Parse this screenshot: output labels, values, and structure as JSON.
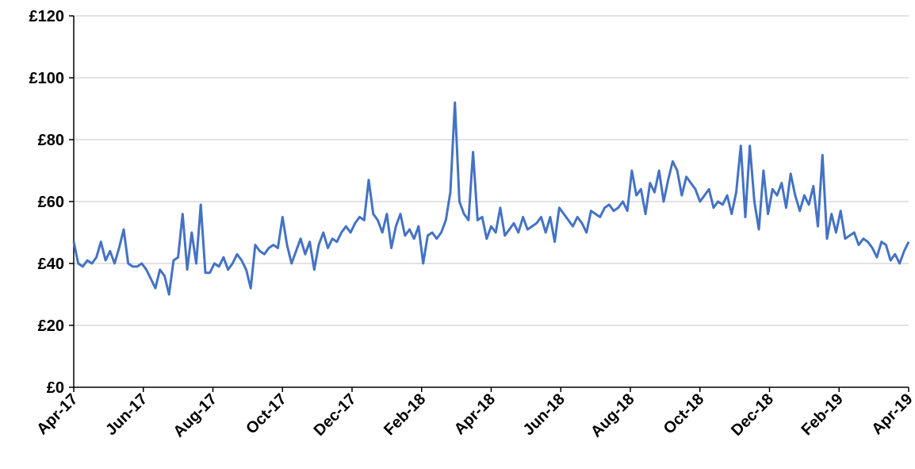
{
  "chart_data": {
    "type": "line",
    "color": "#4472c4",
    "grid": true,
    "xticks": [
      "Apr-17",
      "Jun-17",
      "Aug-17",
      "Oct-17",
      "Dec-17",
      "Feb-18",
      "Apr-18",
      "Jun-18",
      "Aug-18",
      "Oct-18",
      "Dec-18",
      "Feb-19",
      "Apr-19"
    ],
    "ylim": [
      0,
      120
    ],
    "yticks": [
      {
        "value": 0,
        "label": "£0"
      },
      {
        "value": 20,
        "label": "£20"
      },
      {
        "value": 40,
        "label": "£40"
      },
      {
        "value": 60,
        "label": "£60"
      },
      {
        "value": 80,
        "label": "£80"
      },
      {
        "value": 100,
        "label": "£100"
      },
      {
        "value": 120,
        "label": "£120"
      }
    ],
    "values": [
      47,
      40,
      39,
      41,
      40,
      42,
      47,
      41,
      44,
      40,
      45,
      51,
      40,
      39,
      39,
      40,
      38,
      35,
      32,
      38,
      36,
      30,
      41,
      42,
      56,
      38,
      50,
      40,
      59,
      37,
      37,
      40,
      39,
      42,
      38,
      40,
      43,
      41,
      38,
      32,
      46,
      44,
      43,
      45,
      46,
      45,
      55,
      46,
      40,
      44,
      48,
      43,
      47,
      38,
      46,
      50,
      45,
      48,
      47,
      50,
      52,
      50,
      53,
      55,
      54,
      67,
      56,
      54,
      50,
      56,
      45,
      52,
      56,
      49,
      51,
      48,
      52,
      40,
      49,
      50,
      48,
      50,
      54,
      63,
      92,
      60,
      56,
      54,
      76,
      54,
      55,
      48,
      52,
      50,
      58,
      49,
      51,
      53,
      50,
      55,
      51,
      52,
      53,
      55,
      50,
      55,
      47,
      58,
      56,
      54,
      52,
      55,
      53,
      50,
      57,
      56,
      55,
      58,
      59,
      57,
      58,
      60,
      57,
      70,
      62,
      64,
      56,
      66,
      63,
      70,
      60,
      67,
      73,
      70,
      62,
      68,
      66,
      64,
      60,
      62,
      64,
      58,
      60,
      59,
      62,
      56,
      63,
      78,
      55,
      78,
      60,
      51,
      70,
      56,
      64,
      62,
      66,
      58,
      69,
      62,
      57,
      62,
      59,
      65,
      52,
      75,
      48,
      56,
      50,
      57,
      48,
      49,
      50,
      46,
      48,
      47,
      45,
      42,
      47,
      46,
      41,
      43,
      40,
      44,
      47
    ]
  }
}
